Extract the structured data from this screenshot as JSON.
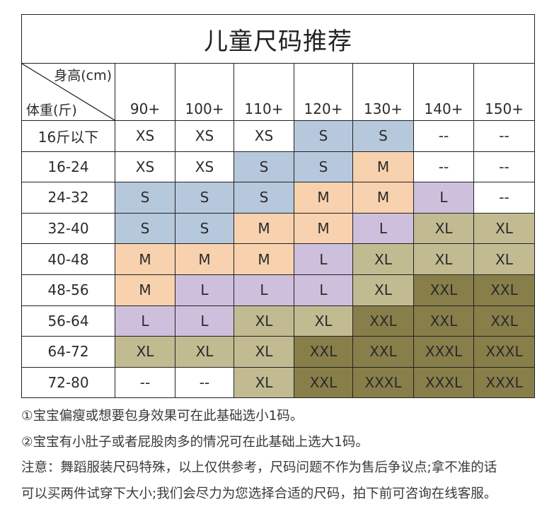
{
  "title": "儿童尺码推荐",
  "corner": {
    "height_label": "身高(cm)",
    "weight_label": "体重(斤)"
  },
  "heights": [
    "90+",
    "100+",
    "110+",
    "120+",
    "130+",
    "140+",
    "150+"
  ],
  "rows": [
    {
      "weight": "16斤以下",
      "sizes": [
        "XS",
        "XS",
        "XS",
        "S",
        "S",
        "--",
        "--"
      ]
    },
    {
      "weight": "16-24",
      "sizes": [
        "XS",
        "XS",
        "S",
        "S",
        "M",
        "--",
        "--"
      ]
    },
    {
      "weight": "24-32",
      "sizes": [
        "S",
        "S",
        "S",
        "M",
        "M",
        "L",
        "--"
      ]
    },
    {
      "weight": "32-40",
      "sizes": [
        "S",
        "S",
        "M",
        "M",
        "L",
        "XL",
        "XL"
      ]
    },
    {
      "weight": "40-48",
      "sizes": [
        "M",
        "M",
        "M",
        "L",
        "XL",
        "XL",
        "XL"
      ]
    },
    {
      "weight": "48-56",
      "sizes": [
        "M",
        "L",
        "L",
        "L",
        "XL",
        "XXL",
        "XXL"
      ]
    },
    {
      "weight": "56-64",
      "sizes": [
        "L",
        "L",
        "XL",
        "XL",
        "XXL",
        "XXL",
        "XXL"
      ]
    },
    {
      "weight": "64-72",
      "sizes": [
        "XL",
        "XL",
        "XL",
        "XXL",
        "XXL",
        "XXXL",
        "XXXL"
      ]
    },
    {
      "weight": "72-80",
      "sizes": [
        "--",
        "--",
        "XL",
        "XXL",
        "XXXL",
        "XXXL",
        "XXXL"
      ]
    }
  ],
  "size_colors": {
    "XS": "#ffffff",
    "--": "#ffffff",
    "S": "#b6c8dc",
    "M": "#f8d2ae",
    "L": "#cec0dc",
    "XL": "#c2bb92",
    "XXL": "#887e4a",
    "XXXL": "#887e4a"
  },
  "notes": [
    "①宝宝偏瘦或想要包身效果可在此基础选小1码。",
    "②宝宝有小肚子或者屁股肉多的情况可在此基础上选大1码。",
    "注意：舞蹈服装尺码特殊，以上仅供参考，尺码问题不作为售后争议点;拿不准的话",
    "可以买两件试穿下大小;我们会尽力为您选择合适的尺码，拍下前可咨询在线客服。"
  ]
}
